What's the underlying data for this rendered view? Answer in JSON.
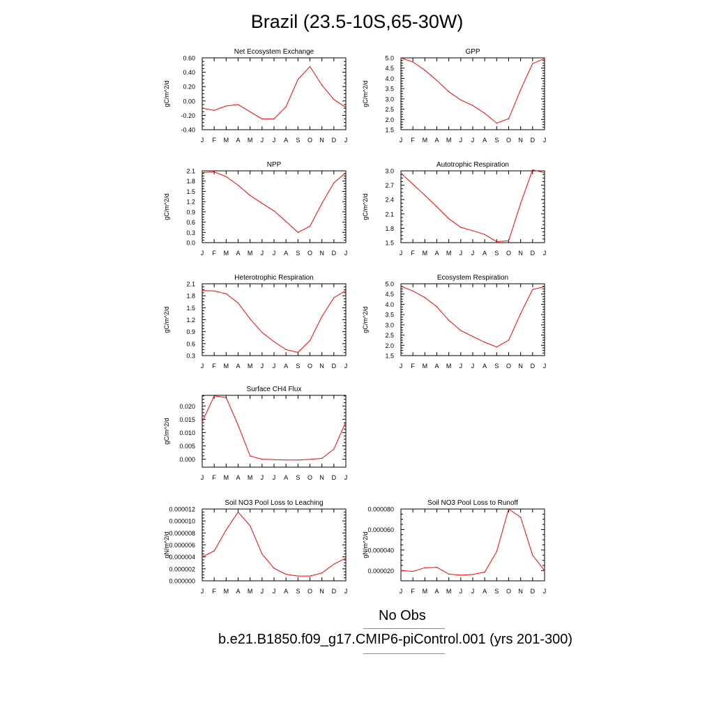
{
  "page_title": "Brazil (23.5-10S,65-30W)",
  "legend": {
    "obs_label": "No Obs",
    "obs_color": "#7b7bff",
    "case_label": "b.e21.B1850.f09_g17.CMIP6-piControl.001 (yrs 201-300)",
    "case_color": "#ff5a5a"
  },
  "line_color": "#ff0000",
  "months": [
    "J",
    "F",
    "M",
    "A",
    "M",
    "J",
    "J",
    "A",
    "S",
    "O",
    "N",
    "D",
    "J"
  ],
  "chart_data": [
    {
      "type": "line",
      "title": "Net Ecosystem Exchange",
      "ylabel": "gC/m^2/d",
      "ylim": [
        -0.4,
        0.6
      ],
      "ytick_values": [
        -0.4,
        -0.2,
        0.0,
        0.2,
        0.4,
        0.6
      ],
      "ytick_labels": [
        "-0.40",
        "-0.20",
        "0.00",
        "0.20",
        "0.40",
        "0.60"
      ],
      "values": [
        -0.1,
        -0.13,
        -0.07,
        -0.05,
        -0.15,
        -0.25,
        -0.25,
        -0.08,
        0.3,
        0.48,
        0.22,
        0.02,
        -0.09
      ]
    },
    {
      "type": "line",
      "title": "GPP",
      "ylabel": "gC/m^2/d",
      "ylim": [
        1.5,
        5.0
      ],
      "ytick_values": [
        1.5,
        2.0,
        2.5,
        3.0,
        3.5,
        4.0,
        4.5,
        5.0
      ],
      "ytick_labels": [
        "1.5",
        "2.0",
        "2.5",
        "3.0",
        "3.5",
        "4.0",
        "4.5",
        "5.0"
      ],
      "values": [
        5.0,
        4.8,
        4.4,
        3.9,
        3.35,
        2.95,
        2.68,
        2.3,
        1.82,
        2.03,
        3.45,
        4.72,
        4.97
      ]
    },
    {
      "type": "line",
      "title": "NPP",
      "ylabel": "gC/m^2/d",
      "ylim": [
        0.0,
        2.1
      ],
      "ytick_values": [
        0.0,
        0.3,
        0.6,
        0.9,
        1.2,
        1.5,
        1.8,
        2.1
      ],
      "ytick_labels": [
        "0.0",
        "0.3",
        "0.6",
        "0.9",
        "1.2",
        "1.5",
        "1.8",
        "2.1"
      ],
      "values": [
        2.05,
        2.07,
        1.93,
        1.68,
        1.38,
        1.15,
        0.93,
        0.62,
        0.3,
        0.48,
        1.15,
        1.75,
        2.05
      ]
    },
    {
      "type": "line",
      "title": "Autotrophic Respiration",
      "ylabel": "gC/m^2/d",
      "ylim": [
        1.5,
        3.0
      ],
      "ytick_values": [
        1.5,
        1.8,
        2.1,
        2.4,
        2.7,
        3.0
      ],
      "ytick_labels": [
        "1.5",
        "1.8",
        "2.1",
        "2.4",
        "2.7",
        "3.0"
      ],
      "values": [
        2.95,
        2.72,
        2.49,
        2.25,
        2.0,
        1.82,
        1.75,
        1.67,
        1.52,
        1.54,
        2.32,
        3.02,
        2.96
      ]
    },
    {
      "type": "line",
      "title": "Heterotrophic Respiration",
      "ylabel": "gC/m^2/d",
      "ylim": [
        0.3,
        2.1
      ],
      "ytick_values": [
        0.3,
        0.6,
        0.9,
        1.2,
        1.5,
        1.8,
        2.1
      ],
      "ytick_labels": [
        "0.3",
        "0.6",
        "0.9",
        "1.2",
        "1.5",
        "1.8",
        "2.1"
      ],
      "values": [
        1.93,
        1.92,
        1.85,
        1.62,
        1.22,
        0.88,
        0.65,
        0.45,
        0.38,
        0.68,
        1.28,
        1.75,
        1.93
      ]
    },
    {
      "type": "line",
      "title": "Ecosystem Respiration",
      "ylabel": "gC/m^2/d",
      "ylim": [
        1.5,
        5.0
      ],
      "ytick_values": [
        1.5,
        2.0,
        2.5,
        3.0,
        3.5,
        4.0,
        4.5,
        5.0
      ],
      "ytick_labels": [
        "1.5",
        "2.0",
        "2.5",
        "3.0",
        "3.5",
        "4.0",
        "4.5",
        "5.0"
      ],
      "values": [
        4.88,
        4.65,
        4.33,
        3.88,
        3.22,
        2.72,
        2.43,
        2.15,
        1.92,
        2.25,
        3.55,
        4.72,
        4.86
      ]
    },
    {
      "type": "line",
      "title": "Surface CH4 Flux",
      "ylabel": "gC/m^2/d",
      "ylim": [
        -0.003,
        0.024
      ],
      "ytick_values": [
        0.0,
        0.005,
        0.01,
        0.015,
        0.02
      ],
      "ytick_labels": [
        "0.000",
        "0.005",
        "0.010",
        "0.015",
        "0.020"
      ],
      "values": [
        0.014,
        0.0238,
        0.0232,
        0.0128,
        0.0012,
        0.0,
        -0.0002,
        -0.0003,
        -0.0003,
        -0.0001,
        0.0003,
        0.0038,
        0.014
      ]
    },
    {
      "type": "line",
      "title": "Soil NO3 Pool Loss to Leaching",
      "ylabel": "gN/m^2/d",
      "ylim": [
        0.0,
        1.2e-05
      ],
      "ytick_values": [
        0.0,
        2e-06,
        4e-06,
        6e-06,
        8e-06,
        1e-05,
        1.2e-05
      ],
      "ytick_labels": [
        "0.000000",
        "0.000002",
        "0.000004",
        "0.000006",
        "0.000008",
        "0.000010",
        "0.000012"
      ],
      "values": [
        4e-06,
        5e-06,
        8.5e-06,
        1.15e-05,
        9.2e-06,
        4.5e-06,
        2.1e-06,
        1.1e-06,
        8e-07,
        8e-07,
        1.3e-06,
        2.8e-06,
        3.8e-06
      ]
    },
    {
      "type": "line",
      "title": "Soil NO3 Pool Loss to Runoff",
      "ylabel": "gN/m^2/d",
      "ylim": [
        1e-05,
        8e-05
      ],
      "ytick_values": [
        2e-05,
        4e-05,
        6e-05,
        8e-05
      ],
      "ytick_labels": [
        "0.000020",
        "0.000040",
        "0.000060",
        "0.000080"
      ],
      "values": [
        2e-05,
        1.92e-05,
        2.28e-05,
        2.32e-05,
        1.65e-05,
        1.55e-05,
        1.62e-05,
        1.85e-05,
        3.85e-05,
        8e-05,
        7.2e-05,
        3.5e-05,
        2e-05
      ]
    }
  ]
}
